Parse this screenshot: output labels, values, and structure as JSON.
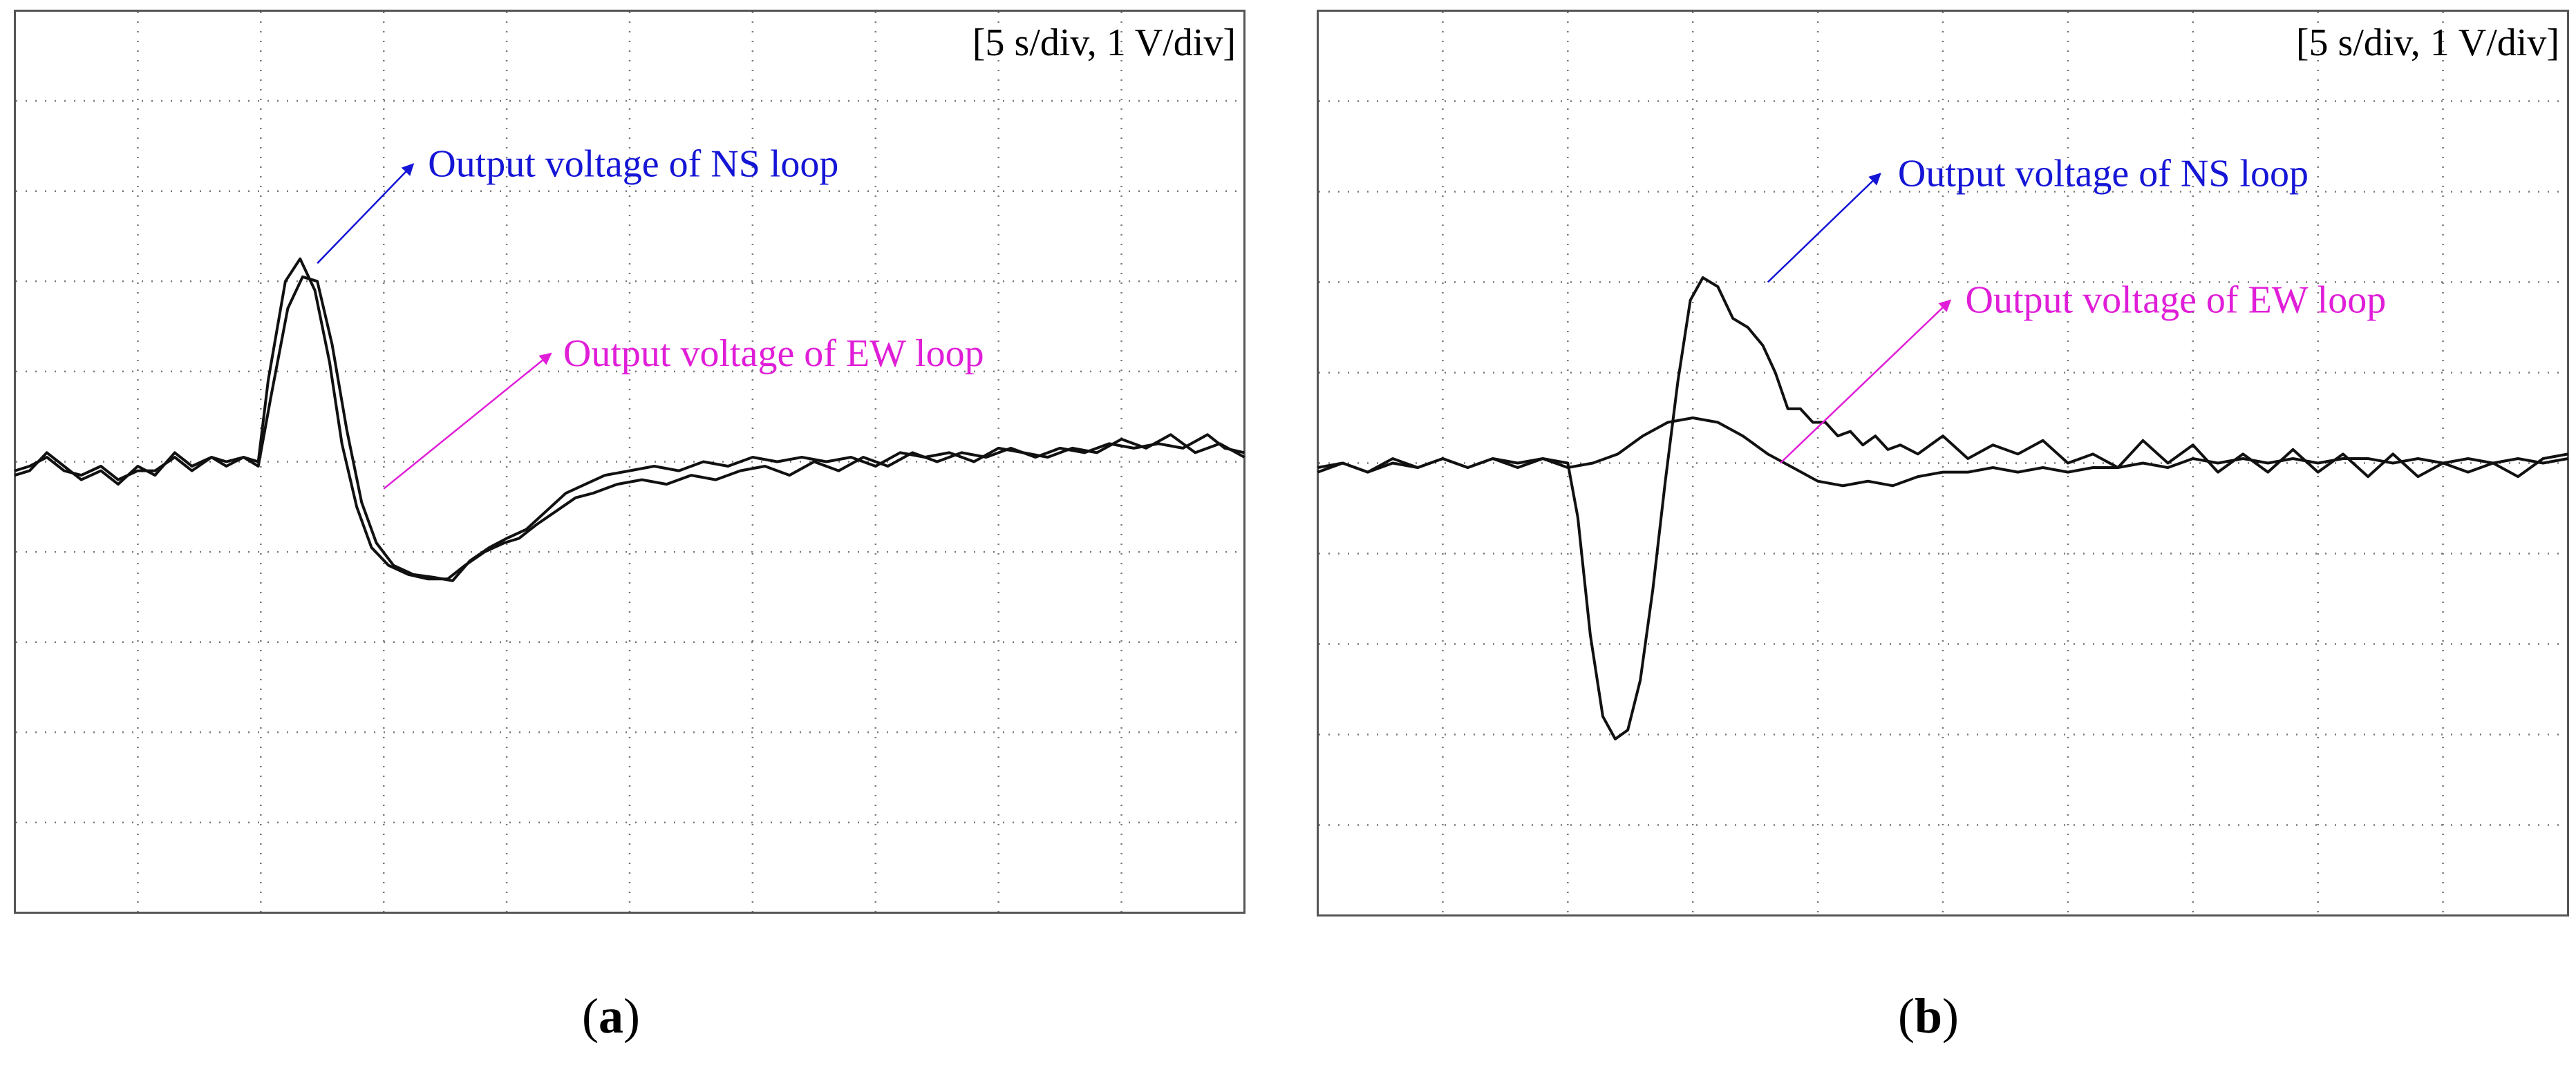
{
  "chart_data": [
    {
      "type": "line",
      "panel_label": "a",
      "scale_label": "[5 s/div, 1 V/div]",
      "divisions": {
        "x": 10,
        "y": 10
      },
      "xlim": [
        0,
        50
      ],
      "ylim": [
        -5,
        5
      ],
      "grid": true,
      "colors": {
        "trace": "#111111",
        "ns_annotation": "#1515d6",
        "ew_annotation": "#e01ed8"
      },
      "annotations": [
        {
          "text": "Output voltage of NS loop",
          "color": "#1515d6",
          "arrow_from": [
            12.3,
            2.2
          ],
          "arrow_to": [
            16.2,
            3.3
          ],
          "text_at": [
            16.8,
            3.3
          ]
        },
        {
          "text": "Output voltage of EW loop",
          "color": "#e01ed8",
          "arrow_from": [
            15,
            -0.3
          ],
          "arrow_to": [
            21.8,
            1.2
          ],
          "text_at": [
            22.3,
            1.2
          ]
        }
      ],
      "series": [
        {
          "x": [
            0,
            0.6,
            1.3,
            2.0,
            2.7,
            3.5,
            4.2,
            5.0,
            5.7,
            6.5,
            7.2,
            8.0,
            8.6,
            9.3,
            9.9,
            10.3,
            11.0,
            11.6,
            12.2,
            12.8,
            13.3,
            13.9,
            14.5,
            15.2,
            16.0,
            16.8,
            17.6,
            18.3,
            19.1,
            19.9,
            20.5,
            21.2,
            22.0,
            22.8,
            23.5,
            24.5,
            25.5,
            26.5,
            27.5,
            28.5,
            29.5,
            30.5,
            31.5,
            32.5,
            33.5,
            34.5,
            35.5,
            36.5,
            37.5,
            38.5,
            39.5,
            40.5,
            41.5,
            42.5,
            43.5,
            44.5,
            45.5,
            46.5,
            47.5,
            48.5,
            49.2,
            50.0
          ],
          "y": [
            -0.15,
            -0.1,
            0.1,
            -0.05,
            -0.2,
            -0.1,
            -0.25,
            -0.05,
            -0.15,
            0.1,
            -0.05,
            0.05,
            -0.05,
            0.05,
            0,
            0.9,
            2.0,
            2.25,
            1.9,
            1.1,
            0.2,
            -0.5,
            -0.95,
            -1.15,
            -1.25,
            -1.3,
            -1.3,
            -1.15,
            -1.0,
            -0.9,
            -0.85,
            -0.7,
            -0.55,
            -0.4,
            -0.35,
            -0.25,
            -0.2,
            -0.25,
            -0.15,
            -0.2,
            -0.1,
            -0.05,
            -0.15,
            0,
            -0.1,
            0.05,
            -0.05,
            0.1,
            0,
            0.1,
            0.05,
            0.15,
            0.05,
            0.15,
            0.1,
            0.2,
            0.15,
            0.2,
            0.15,
            0.3,
            0.15,
            0.1
          ]
        },
        {
          "x": [
            0,
            0.6,
            1.3,
            2.0,
            2.7,
            3.5,
            4.2,
            5.0,
            5.7,
            6.5,
            7.2,
            8.0,
            8.6,
            9.3,
            9.9,
            10.4,
            11.1,
            11.7,
            12.3,
            12.9,
            13.5,
            14.1,
            14.7,
            15.4,
            16.2,
            17.0,
            17.8,
            18.5,
            19.3,
            20.0,
            20.8,
            21.6,
            22.4,
            23.2,
            24.0,
            25.0,
            26.0,
            27.0,
            28.0,
            29.0,
            30.0,
            31.0,
            32.0,
            33.0,
            34.0,
            35.0,
            36.0,
            37.0,
            38.0,
            39.0,
            40.0,
            41.0,
            42.0,
            43.0,
            44.0,
            45.0,
            46.0,
            47.0,
            48.0,
            49.0,
            50.0
          ],
          "y": [
            -0.1,
            -0.05,
            0.05,
            -0.1,
            -0.15,
            -0.05,
            -0.2,
            -0.1,
            -0.1,
            0.05,
            -0.1,
            0.05,
            0,
            0.05,
            -0.05,
            0.7,
            1.7,
            2.05,
            2.0,
            1.3,
            0.35,
            -0.45,
            -0.9,
            -1.15,
            -1.25,
            -1.28,
            -1.32,
            -1.1,
            -0.95,
            -0.85,
            -0.75,
            -0.55,
            -0.35,
            -0.25,
            -0.15,
            -0.1,
            -0.05,
            -0.1,
            0,
            -0.05,
            0.05,
            0,
            0.05,
            0,
            0.05,
            -0.05,
            0.1,
            0.05,
            0.1,
            0,
            0.15,
            0.1,
            0.05,
            0.15,
            0.1,
            0.25,
            0.15,
            0.3,
            0.1,
            0.2,
            0.05
          ]
        }
      ]
    },
    {
      "type": "line",
      "panel_label": "b",
      "scale_label": "[5 s/div, 1 V/div]",
      "divisions": {
        "x": 10,
        "y": 10
      },
      "xlim": [
        0,
        50
      ],
      "ylim": [
        -5,
        5
      ],
      "grid": true,
      "colors": {
        "trace": "#111111",
        "ns_annotation": "#1515d6",
        "ew_annotation": "#e01ed8"
      },
      "annotations": [
        {
          "text": "Output voltage of NS loop",
          "color": "#1515d6",
          "arrow_from": [
            18.0,
            2.0
          ],
          "arrow_to": [
            22.5,
            3.2
          ],
          "text_at": [
            23.2,
            3.2
          ]
        },
        {
          "text": "Output voltage of EW loop",
          "color": "#e01ed8",
          "arrow_from": [
            18.5,
            0
          ],
          "arrow_to": [
            25.3,
            1.8
          ],
          "text_at": [
            25.9,
            1.8
          ]
        }
      ],
      "series": [
        {
          "x": [
            0,
            1.0,
            2.0,
            3.0,
            4.0,
            5.0,
            6.0,
            7.0,
            8.0,
            9.0,
            10.0,
            10.4,
            10.9,
            11.4,
            11.9,
            12.4,
            12.9,
            13.4,
            13.9,
            14.4,
            14.9,
            15.4,
            16.0,
            16.6,
            17.2,
            17.8,
            18.3,
            18.8,
            19.3,
            19.8,
            20.3,
            20.8,
            21.3,
            21.8,
            22.3,
            22.8,
            23.3,
            24.0,
            25.0,
            26.0,
            27.0,
            28.0,
            29.0,
            30.0,
            31.0,
            32.0,
            33.0,
            34.0,
            35.0,
            36.0,
            37.0,
            38.0,
            39.0,
            40.0,
            41.0,
            42.0,
            43.0,
            44.0,
            45.0,
            46.0,
            47.0,
            48.0,
            49.0,
            50.0
          ],
          "y": [
            -0.1,
            0,
            -0.1,
            0.05,
            -0.05,
            0.05,
            -0.05,
            0.05,
            -0.05,
            0.05,
            0,
            -0.6,
            -1.9,
            -2.8,
            -3.05,
            -2.95,
            -2.4,
            -1.4,
            -0.2,
            0.9,
            1.8,
            2.05,
            1.95,
            1.6,
            1.5,
            1.3,
            1.0,
            0.6,
            0.6,
            0.45,
            0.45,
            0.3,
            0.35,
            0.2,
            0.3,
            0.15,
            0.2,
            0.1,
            0.3,
            0.05,
            0.2,
            0.1,
            0.25,
            0,
            0.1,
            -0.05,
            0.25,
            0,
            0.2,
            -0.1,
            0.1,
            -0.1,
            0.15,
            -0.1,
            0.1,
            -0.15,
            0.1,
            -0.15,
            0,
            -0.1,
            0,
            -0.15,
            0.05,
            0.1
          ]
        },
        {
          "x": [
            0,
            1.0,
            2.0,
            3.0,
            4.0,
            5.0,
            6.0,
            7.0,
            8.0,
            9.0,
            10.0,
            11.0,
            12.0,
            13.0,
            14.0,
            15.0,
            16.0,
            17.0,
            18.0,
            19.0,
            20.0,
            21.0,
            22.0,
            23.0,
            24.0,
            25.0,
            26.0,
            27.0,
            28.0,
            29.0,
            30.0,
            31.0,
            32.0,
            33.0,
            34.0,
            35.0,
            36.0,
            37.0,
            38.0,
            39.0,
            40.0,
            41.0,
            42.0,
            43.0,
            44.0,
            45.0,
            46.0,
            47.0,
            48.0,
            49.0,
            50.0
          ],
          "y": [
            -0.05,
            0,
            -0.1,
            0,
            -0.05,
            0.05,
            -0.05,
            0.05,
            0,
            0.05,
            -0.05,
            0,
            0.1,
            0.3,
            0.45,
            0.5,
            0.45,
            0.3,
            0.1,
            -0.05,
            -0.2,
            -0.25,
            -0.2,
            -0.25,
            -0.15,
            -0.1,
            -0.1,
            -0.05,
            -0.1,
            -0.05,
            -0.1,
            -0.05,
            -0.05,
            0,
            -0.05,
            0.05,
            0,
            0.05,
            0,
            0.05,
            0,
            0.05,
            0.05,
            0,
            0.05,
            0,
            0.05,
            0,
            0.05,
            0,
            0.05
          ]
        }
      ]
    }
  ]
}
